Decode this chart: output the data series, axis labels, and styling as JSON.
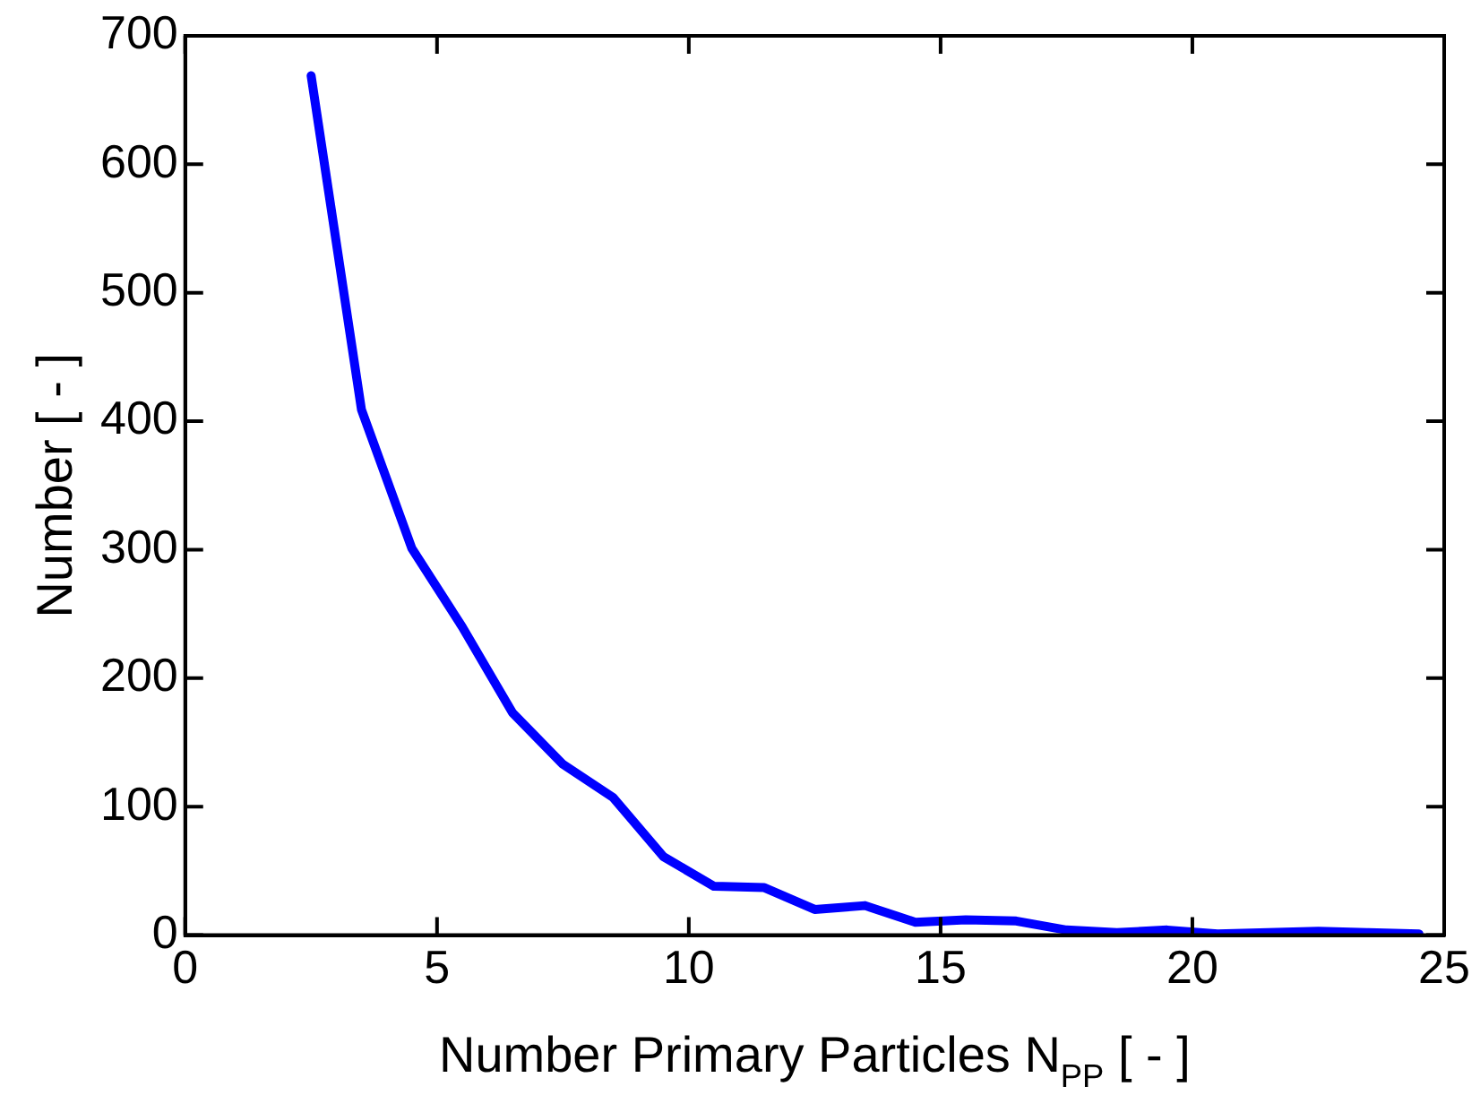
{
  "chart_data": {
    "type": "line",
    "xlabel": "Number Primary Particles N$_{PP}$ [ - ]",
    "ylabel": "Number [ - ]",
    "x": [
      2.5,
      3.5,
      4.5,
      5.5,
      6.5,
      7.5,
      8.5,
      9.5,
      10.5,
      11.5,
      12.5,
      13.5,
      14.5,
      15.5,
      16.5,
      17.5,
      18.5,
      19.5,
      20.5,
      21.5,
      22.5,
      23.5,
      24.5
    ],
    "series": [
      {
        "color": "#0000ff",
        "values": [
          669,
          409,
          301,
          240,
          173,
          133,
          107,
          61,
          38,
          37,
          20,
          23,
          10,
          12,
          11,
          4,
          2,
          4,
          1,
          2,
          3,
          2,
          1
        ]
      }
    ],
    "xlim": [
      0,
      25
    ],
    "xticks": [
      0,
      5,
      10,
      15,
      20,
      25
    ],
    "ylim": [
      0,
      700
    ],
    "yticks": [
      0,
      100,
      200,
      300,
      400,
      500,
      600,
      700
    ],
    "grid": false,
    "legend": false,
    "marker": "none",
    "line_style": "solid"
  }
}
